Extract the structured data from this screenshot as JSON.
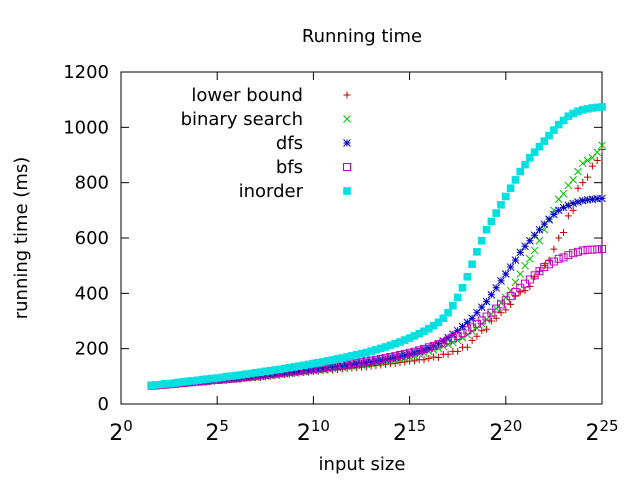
{
  "chart_data": {
    "type": "scatter",
    "title": "Running time",
    "xlabel": "input size",
    "ylabel": "running time (ms)",
    "x_scale": "log2",
    "xlim": [
      1,
      33554432
    ],
    "ylim": [
      0,
      1200
    ],
    "x_ticks": [
      {
        "value": 1,
        "base": "2",
        "exp": "0"
      },
      {
        "value": 32,
        "base": "2",
        "exp": "5"
      },
      {
        "value": 1024,
        "base": "2",
        "exp": "10"
      },
      {
        "value": 32768,
        "base": "2",
        "exp": "15"
      },
      {
        "value": 1048576,
        "base": "2",
        "exp": "20"
      },
      {
        "value": 33554432,
        "base": "2",
        "exp": "25"
      }
    ],
    "y_ticks": [
      0,
      200,
      400,
      600,
      800,
      1000,
      1200
    ],
    "y_tick_labels": [
      "0",
      "200",
      "400",
      "600",
      "800",
      "1000",
      "1200"
    ],
    "grid": false,
    "legend_position": "top-left",
    "x": [
      3,
      3.5,
      4.5,
      5,
      6,
      7,
      8,
      9.5,
      11,
      13,
      16,
      19,
      22,
      26,
      32,
      38,
      45,
      54,
      64,
      76,
      91,
      108,
      128,
      152,
      181,
      215,
      256,
      304,
      362,
      431,
      512,
      609,
      724,
      861,
      1024,
      1218,
      1448,
      1722,
      2048,
      2435,
      2896,
      3444,
      4096,
      4871,
      5793,
      6889,
      8192,
      9742,
      11585,
      13777,
      16384,
      19484,
      23170,
      27554,
      32768,
      38968,
      46341,
      55109,
      65536,
      77936,
      92682,
      110218,
      131072,
      155872,
      185364,
      220436,
      262144,
      311744,
      370728,
      440872,
      524288,
      623487,
      741455,
      881744,
      1048576,
      1246974,
      1482910,
      1763488,
      2097152,
      2493948,
      2965821,
      3526975,
      4194304,
      4987896,
      5931642,
      7053950,
      8388608,
      9975792,
      11863283,
      14107900,
      16777216,
      19951584,
      23726566,
      28215801,
      33554432
    ],
    "series": [
      {
        "name": "lower bound",
        "marker": "plus",
        "color": "#c00000",
        "values": [
          65,
          67,
          68,
          70,
          70,
          72,
          74,
          74,
          75,
          76,
          78,
          80,
          80,
          83,
          85,
          85,
          86,
          88,
          89,
          90,
          92,
          94,
          95,
          96,
          98,
          100,
          102,
          104,
          106,
          108,
          110,
          112,
          114,
          115,
          117,
          118,
          120,
          122,
          123,
          124,
          126,
          128,
          130,
          131,
          133,
          134,
          137,
          139,
          141,
          143,
          145,
          147,
          150,
          152,
          155,
          156,
          160,
          160,
          165,
          170,
          168,
          180,
          180,
          190,
          190,
          205,
          205,
          230,
          245,
          265,
          270,
          300,
          310,
          330,
          340,
          360,
          390,
          405,
          410,
          425,
          460,
          480,
          500,
          520,
          560,
          600,
          620,
          680,
          700,
          780,
          800,
          820,
          860,
          880,
          920
        ]
      },
      {
        "name": "binary search",
        "marker": "cross",
        "color": "#00c000",
        "values": [
          65,
          66,
          68,
          69,
          70,
          72,
          73,
          75,
          76,
          77,
          79,
          80,
          81,
          83,
          85,
          86,
          88,
          89,
          90,
          92,
          94,
          96,
          97,
          99,
          101,
          103,
          105,
          107,
          109,
          111,
          113,
          115,
          117,
          119,
          121,
          123,
          125,
          127,
          129,
          131,
          133,
          135,
          137,
          139,
          141,
          143,
          146,
          148,
          150,
          153,
          156,
          159,
          162,
          166,
          170,
          174,
          180,
          183,
          190,
          195,
          200,
          208,
          215,
          222,
          230,
          240,
          250,
          263,
          275,
          290,
          305,
          325,
          345,
          365,
          385,
          410,
          440,
          470,
          500,
          525,
          555,
          590,
          630,
          665,
          700,
          740,
          760,
          790,
          810,
          840,
          870,
          880,
          890,
          910,
          935
        ]
      },
      {
        "name": "dfs",
        "marker": "star",
        "color": "#0000c0",
        "values": [
          66,
          67,
          68,
          70,
          71,
          73,
          74,
          76,
          77,
          78,
          80,
          81,
          83,
          84,
          86,
          88,
          89,
          91,
          93,
          95,
          96,
          98,
          100,
          102,
          104,
          106,
          108,
          110,
          112,
          114,
          116,
          118,
          120,
          122,
          124,
          126,
          128,
          131,
          133,
          135,
          137,
          140,
          142,
          145,
          147,
          150,
          152,
          155,
          158,
          161,
          165,
          168,
          172,
          176,
          180,
          185,
          190,
          196,
          202,
          210,
          218,
          228,
          240,
          252,
          265,
          280,
          295,
          310,
          330,
          350,
          370,
          395,
          420,
          445,
          470,
          495,
          520,
          548,
          570,
          590,
          610,
          630,
          650,
          668,
          685,
          700,
          710,
          718,
          725,
          730,
          735,
          738,
          740,
          742,
          743
        ]
      },
      {
        "name": "bfs",
        "marker": "box",
        "color": "#c000c0",
        "values": [
          66,
          67,
          69,
          70,
          72,
          73,
          75,
          76,
          78,
          79,
          81,
          82,
          84,
          86,
          87,
          89,
          91,
          92,
          94,
          96,
          98,
          100,
          102,
          104,
          106,
          108,
          110,
          112,
          114,
          116,
          118,
          120,
          122,
          125,
          127,
          129,
          131,
          134,
          136,
          138,
          141,
          143,
          146,
          148,
          151,
          154,
          157,
          160,
          163,
          166,
          170,
          173,
          177,
          181,
          185,
          189,
          194,
          199,
          205,
          210,
          216,
          222,
          230,
          238,
          246,
          256,
          266,
          277,
          290,
          302,
          316,
          330,
          345,
          360,
          375,
          390,
          405,
          420,
          435,
          450,
          465,
          480,
          495,
          505,
          515,
          525,
          530,
          538,
          545,
          550,
          555,
          557,
          558,
          559,
          560
        ]
      },
      {
        "name": "inorder",
        "marker": "filled-box",
        "color": "#00e0e0",
        "values": [
          67,
          69,
          71,
          73,
          74,
          76,
          78,
          80,
          82,
          84,
          86,
          88,
          90,
          92,
          94,
          96,
          99,
          101,
          103,
          105,
          108,
          110,
          113,
          115,
          118,
          120,
          123,
          125,
          128,
          131,
          134,
          137,
          140,
          143,
          146,
          149,
          152,
          156,
          159,
          163,
          166,
          170,
          174,
          178,
          182,
          186,
          191,
          196,
          201,
          206,
          212,
          218,
          224,
          231,
          238,
          246,
          254,
          263,
          272,
          283,
          295,
          310,
          330,
          355,
          385,
          420,
          460,
          505,
          550,
          590,
          630,
          660,
          690,
          720,
          750,
          780,
          810,
          840,
          865,
          890,
          910,
          930,
          950,
          970,
          990,
          1010,
          1025,
          1040,
          1050,
          1058,
          1063,
          1067,
          1070,
          1072,
          1074
        ]
      }
    ]
  }
}
